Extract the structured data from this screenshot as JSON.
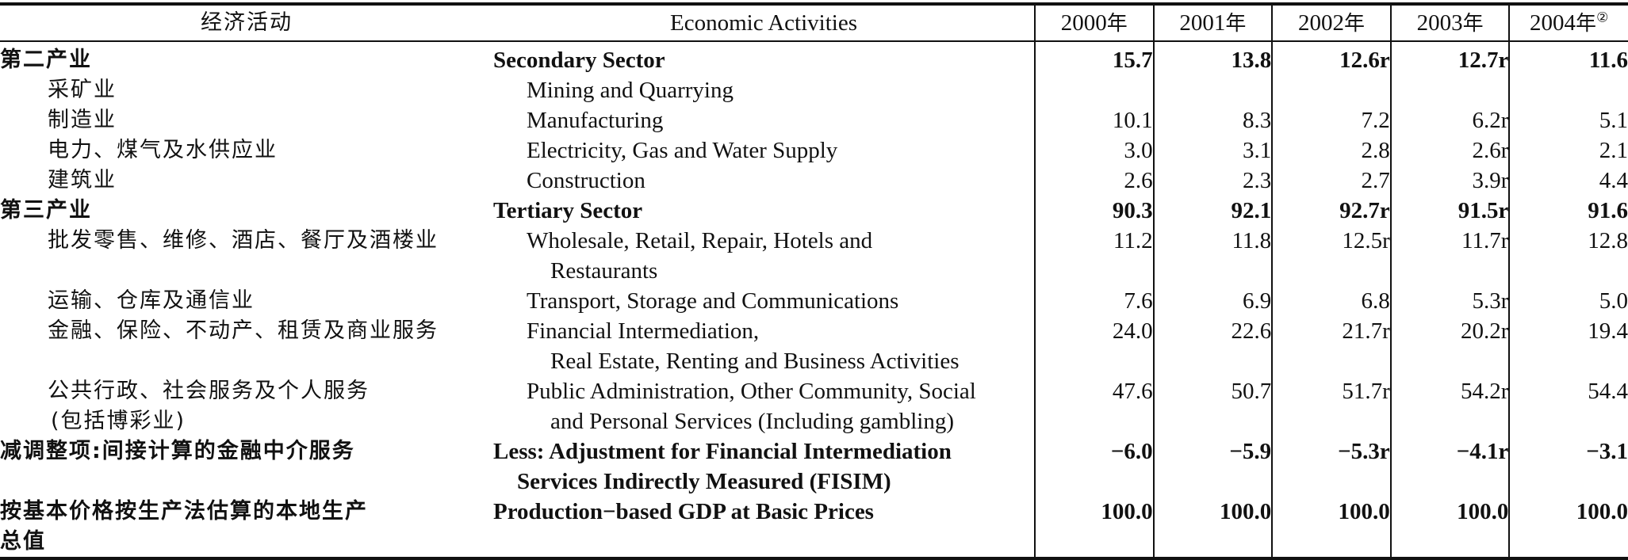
{
  "table": {
    "header": {
      "zh": "经济活动",
      "en": "Economic Activities",
      "years": [
        {
          "label": "2000",
          "suffix": "年",
          "note": ""
        },
        {
          "label": "2001",
          "suffix": "年",
          "note": ""
        },
        {
          "label": "2002",
          "suffix": "年",
          "note": ""
        },
        {
          "label": "2003",
          "suffix": "年",
          "note": ""
        },
        {
          "label": "2004",
          "suffix": "年",
          "note": "②"
        }
      ]
    },
    "rows": [
      {
        "zh": [
          "第二产业"
        ],
        "en": [
          "Secondary Sector"
        ],
        "values": [
          "15.7",
          "13.8",
          "12.6r",
          "12.7r",
          "11.6"
        ],
        "bold": true
      },
      {
        "zh": [
          "采矿业"
        ],
        "en": [
          "Mining and Quarrying"
        ],
        "values": [
          "",
          "",
          "",
          "",
          ""
        ],
        "bold": false
      },
      {
        "zh": [
          "制造业"
        ],
        "en": [
          "Manufacturing"
        ],
        "values": [
          "10.1",
          "8.3",
          "7.2",
          "6.2r",
          "5.1"
        ],
        "bold": false
      },
      {
        "zh": [
          "电力、煤气及水供应业"
        ],
        "en": [
          "Electricity, Gas and Water Supply"
        ],
        "values": [
          "3.0",
          "3.1",
          "2.8",
          "2.6r",
          "2.1"
        ],
        "bold": false
      },
      {
        "zh": [
          "建筑业"
        ],
        "en": [
          "Construction"
        ],
        "values": [
          "2.6",
          "2.3",
          "2.7",
          "3.9r",
          "4.4"
        ],
        "bold": false
      },
      {
        "zh": [
          "第三产业"
        ],
        "en": [
          "Tertiary Sector"
        ],
        "values": [
          "90.3",
          "92.1",
          "92.7r",
          "91.5r",
          "91.6"
        ],
        "bold": true
      },
      {
        "zh": [
          "批发零售、维修、酒店、餐厅及酒楼业"
        ],
        "en": [
          "Wholesale, Retail, Repair, Hotels and",
          "Restaurants"
        ],
        "values": [
          "11.2",
          "11.8",
          "12.5r",
          "11.7r",
          "12.8"
        ],
        "bold": false
      },
      {
        "zh": [
          "运输、仓库及通信业"
        ],
        "en": [
          "Transport, Storage and Communications"
        ],
        "values": [
          "7.6",
          "6.9",
          "6.8",
          "5.3r",
          "5.0"
        ],
        "bold": false
      },
      {
        "zh": [
          "金融、保险、不动产、租赁及商业服务"
        ],
        "en": [
          "Financial Intermediation,",
          "Real Estate, Renting and Business Activities"
        ],
        "values": [
          "24.0",
          "22.6",
          "21.7r",
          "20.2r",
          "19.4"
        ],
        "bold": false
      },
      {
        "zh": [
          "公共行政、社会服务及个人服务",
          "(包括博彩业)"
        ],
        "en": [
          "Public Administration, Other Community, Social",
          "and Personal Services (Including gambling)"
        ],
        "values": [
          "47.6",
          "50.7",
          "51.7r",
          "54.2r",
          "54.4"
        ],
        "bold": false
      },
      {
        "zh": [
          "减调整项:间接计算的金融中介服务"
        ],
        "en": [
          "Less: Adjustment for Financial Intermediation",
          "Services Indirectly Measured (FISIM)"
        ],
        "values": [
          "−6.0",
          "−5.9",
          "−5.3r",
          "−4.1r",
          "−3.1"
        ],
        "bold": true
      },
      {
        "zh": [
          "按基本价格按生产法估算的本地生产",
          "总值"
        ],
        "en": [
          "Production−based GDP at Basic Prices"
        ],
        "values": [
          "100.0",
          "100.0",
          "100.0",
          "100.0",
          "100.0"
        ],
        "bold": true
      }
    ]
  }
}
